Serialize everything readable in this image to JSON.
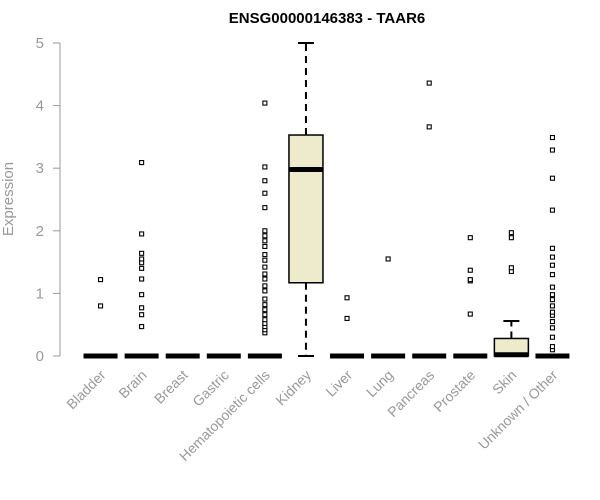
{
  "chart_data": {
    "type": "boxplot",
    "title": "ENSG00000146383 - TAAR6",
    "ylabel": "Expression",
    "xlabel": "",
    "ylim": [
      0,
      5
    ],
    "yticks": [
      0,
      1,
      2,
      3,
      4,
      5
    ],
    "box_fill": "#eeeacc",
    "categories": [
      "Bladder",
      "Brain",
      "Breast",
      "Gastric",
      "Hematopoietic cells",
      "Kidney",
      "Liver",
      "Lung",
      "Pancreas",
      "Prostate",
      "Skin",
      "Unknown / Other"
    ],
    "boxes": [
      {
        "category": "Bladder",
        "q1": 0,
        "median": 0,
        "q3": 0,
        "whisker_low": 0,
        "whisker_high": 0,
        "outliers": [
          0.8,
          1.22
        ]
      },
      {
        "category": "Brain",
        "q1": 0,
        "median": 0,
        "q3": 0,
        "whisker_low": 0,
        "whisker_high": 0,
        "outliers": [
          0.47,
          0.66,
          0.77,
          0.98,
          1.23,
          1.4,
          1.49,
          1.55,
          1.64,
          1.95,
          3.09
        ]
      },
      {
        "category": "Breast",
        "q1": 0,
        "median": 0,
        "q3": 0,
        "whisker_low": 0,
        "whisker_high": 0,
        "outliers": []
      },
      {
        "category": "Gastric",
        "q1": 0,
        "median": 0,
        "q3": 0,
        "whisker_low": 0,
        "whisker_high": 0,
        "outliers": []
      },
      {
        "category": "Hematopoietic cells",
        "q1": 0,
        "median": 0,
        "q3": 0,
        "whisker_low": 0,
        "whisker_high": 0,
        "outliers": [
          0.37,
          0.42,
          0.47,
          0.52,
          0.58,
          0.66,
          0.74,
          0.82,
          0.91,
          1.04,
          1.12,
          1.23,
          1.31,
          1.42,
          1.53,
          1.62,
          1.75,
          1.84,
          1.92,
          2.0,
          2.37,
          2.6,
          2.8,
          3.02,
          4.04
        ]
      },
      {
        "category": "Kidney",
        "q1": 1.17,
        "median": 2.98,
        "q3": 3.53,
        "whisker_low": 0,
        "whisker_high": 5.0,
        "outliers": []
      },
      {
        "category": "Liver",
        "q1": 0,
        "median": 0,
        "q3": 0,
        "whisker_low": 0,
        "whisker_high": 0,
        "outliers": [
          0.6,
          0.93
        ]
      },
      {
        "category": "Lung",
        "q1": 0,
        "median": 0,
        "q3": 0,
        "whisker_low": 0,
        "whisker_high": 0,
        "outliers": [
          1.55
        ]
      },
      {
        "category": "Pancreas",
        "q1": 0,
        "median": 0,
        "q3": 0,
        "whisker_low": 0,
        "whisker_high": 0,
        "outliers": [
          3.66,
          4.36
        ]
      },
      {
        "category": "Prostate",
        "q1": 0,
        "median": 0,
        "q3": 0,
        "whisker_low": 0,
        "whisker_high": 0,
        "outliers": [
          0.67,
          1.2,
          1.22,
          1.37,
          1.89
        ]
      },
      {
        "category": "Skin",
        "q1": 0,
        "median": 0.02,
        "q3": 0.28,
        "whisker_low": 0,
        "whisker_high": 0.56,
        "outliers": [
          1.35,
          1.41,
          1.89,
          1.97
        ]
      },
      {
        "category": "Unknown / Other",
        "q1": 0,
        "median": 0,
        "q3": 0,
        "whisker_low": 0,
        "whisker_high": 0,
        "outliers": [
          0.1,
          0.15,
          0.3,
          0.45,
          0.55,
          0.65,
          0.7,
          0.8,
          0.9,
          0.98,
          1.1,
          1.3,
          1.45,
          1.58,
          1.72,
          2.33,
          2.84,
          3.29,
          3.49
        ]
      }
    ]
  }
}
